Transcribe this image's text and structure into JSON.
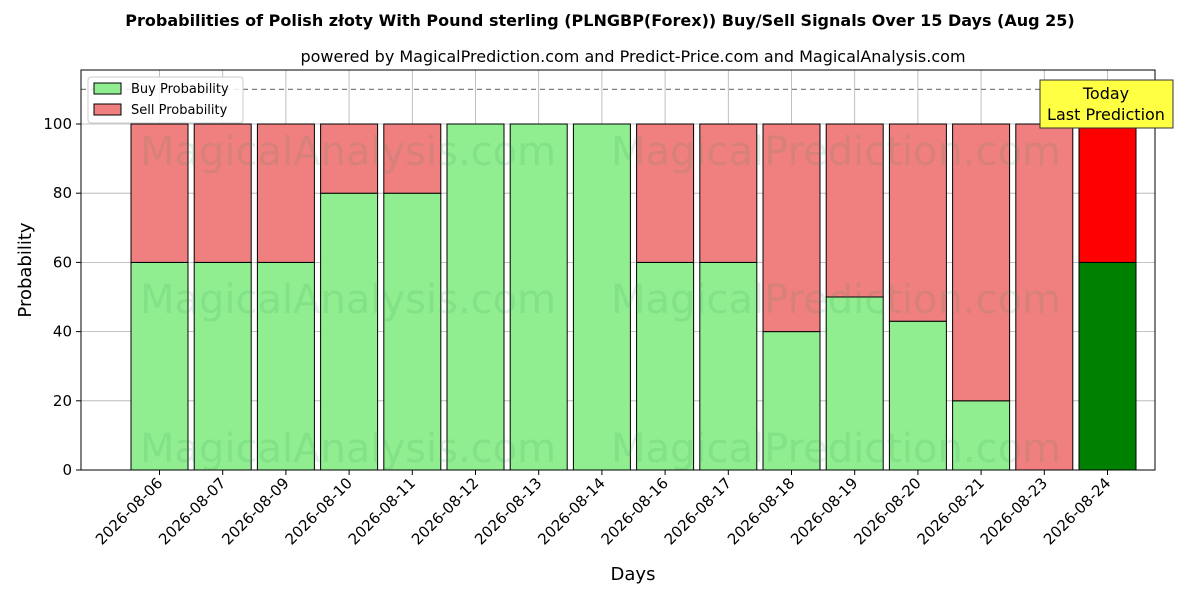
{
  "chart_data": {
    "type": "bar",
    "stacked": true,
    "title": "Probabilities of Polish złoty With Pound sterling (PLNGBP(Forex)) Buy/Sell Signals Over 15 Days (Aug 25)",
    "subtitle": "powered by MagicalPrediction.com and Predict-Price.com and MagicalAnalysis.com",
    "xlabel": "Days",
    "ylabel": "Probability",
    "ylim": [
      0,
      115
    ],
    "yticks": [
      0,
      20,
      40,
      60,
      80,
      100
    ],
    "reference_line": 110,
    "grid": true,
    "legend_position": "top-left",
    "categories": [
      "2026-08-06",
      "2026-08-07",
      "2026-08-09",
      "2026-08-10",
      "2026-08-11",
      "2026-08-12",
      "2026-08-13",
      "2026-08-14",
      "2026-08-16",
      "2026-08-17",
      "2026-08-18",
      "2026-08-19",
      "2026-08-20",
      "2026-08-21",
      "2026-08-23",
      "2026-08-24"
    ],
    "series": [
      {
        "name": "Buy Probability",
        "color": "#90ee90",
        "highlight_color": "#008000",
        "values": [
          60,
          60,
          60,
          80,
          80,
          100,
          100,
          100,
          60,
          60,
          40,
          50,
          43,
          20,
          0,
          60
        ]
      },
      {
        "name": "Sell Probability",
        "color": "#f08080",
        "highlight_color": "#ff0000",
        "values": [
          40,
          40,
          40,
          20,
          20,
          0,
          0,
          0,
          40,
          40,
          60,
          50,
          57,
          80,
          100,
          40
        ]
      }
    ],
    "annotation": {
      "line1": "Today",
      "line2": "Last Prediction",
      "color": "#ffff44"
    },
    "watermarks": [
      "MagicalAnalysis.com",
      "MagicalPrediction.com"
    ]
  }
}
